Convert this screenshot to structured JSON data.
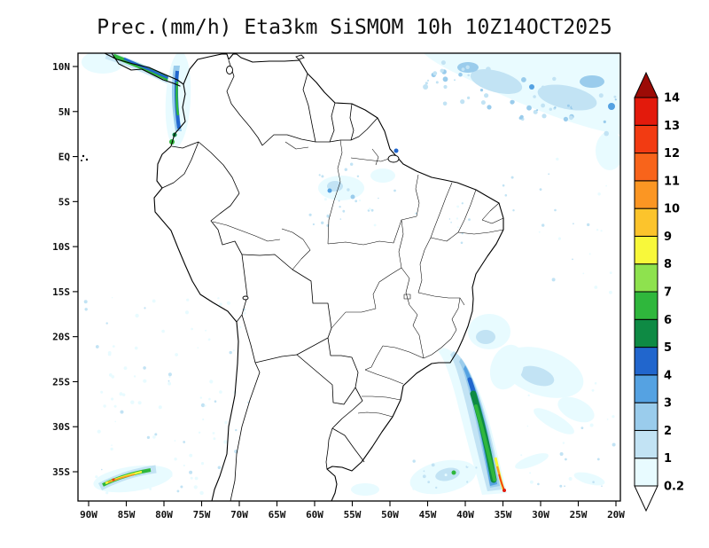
{
  "title": "Prec.(mm/h) Eta3km SiSMOM 10h 10Z14OCT2025",
  "map": {
    "y_axis_labels": [
      "10N",
      "5N",
      "EQ",
      "5S",
      "10S",
      "15S",
      "20S",
      "25S",
      "30S",
      "35S"
    ],
    "x_axis_labels": [
      "90W",
      "85W",
      "80W",
      "75W",
      "70W",
      "65W",
      "60W",
      "55W",
      "50W",
      "45W",
      "40W",
      "35W",
      "30W",
      "25W",
      "20W"
    ]
  },
  "colorbar": {
    "tick_labels": [
      "0.2",
      "1",
      "2",
      "3",
      "4",
      "5",
      "6",
      "7",
      "8",
      "9",
      "10",
      "11",
      "12",
      "13",
      "14"
    ],
    "segment_colors": [
      "#e8fbff",
      "#c2e3f4",
      "#9accec",
      "#55a2e2",
      "#2166cd",
      "#0e8a44",
      "#2fb73c",
      "#8ee24e",
      "#f8f83a",
      "#fcc42c",
      "#fb9623",
      "#f8641b",
      "#f23b12",
      "#e31a0c"
    ],
    "below_min_color": "#ffffff",
    "above_max_color": "#9c0b06"
  }
}
